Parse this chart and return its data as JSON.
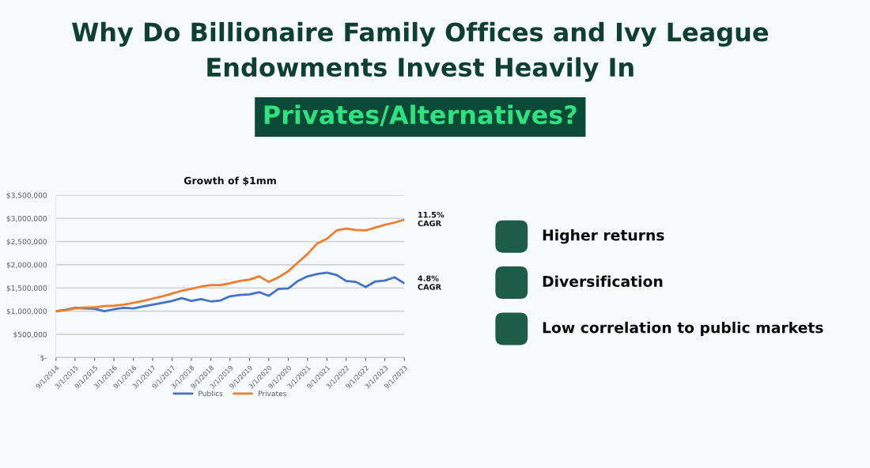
{
  "chart_data": [
    {
      "type": "other",
      "title": "Why Do Billionaire Family Offices and Ivy League\nEndowments Invest Heavily In",
      "subtitle": "Privates/Alternatives?"
    },
    {
      "type": "line",
      "title": "Growth of $1mm",
      "x": [
        "2014-09-01",
        "2014-12-01",
        "2015-03-01",
        "2015-06-01",
        "2015-09-01",
        "2015-12-01",
        "2016-03-01",
        "2016-06-01",
        "2016-09-01",
        "2016-12-01",
        "2017-03-01",
        "2017-06-01",
        "2017-09-01",
        "2017-12-01",
        "2018-03-01",
        "2018-06-01",
        "2018-09-01",
        "2018-12-01",
        "2019-03-01",
        "2019-06-01",
        "2019-09-01",
        "2019-12-01",
        "2020-03-01",
        "2020-06-01",
        "2020-09-01",
        "2020-12-01",
        "2021-03-01",
        "2021-06-01",
        "2021-09-01",
        "2021-12-01",
        "2022-03-01",
        "2022-06-01",
        "2022-09-01",
        "2022-12-01",
        "2023-03-01",
        "2023-06-01",
        "2023-09-01"
      ],
      "series": [
        {
          "name": "Publics",
          "color": "#4472c4",
          "values": [
            1000000,
            1030000,
            1070000,
            1060000,
            1050000,
            1000000,
            1040000,
            1070000,
            1060000,
            1100000,
            1140000,
            1180000,
            1220000,
            1280000,
            1220000,
            1260000,
            1210000,
            1230000,
            1320000,
            1350000,
            1360000,
            1410000,
            1330000,
            1480000,
            1490000,
            1650000,
            1750000,
            1800000,
            1830000,
            1780000,
            1650000,
            1630000,
            1520000,
            1640000,
            1660000,
            1730000,
            1600000
          ]
        },
        {
          "name": "Privates",
          "color": "#ed7d31",
          "values": [
            1000000,
            1020000,
            1060000,
            1080000,
            1080000,
            1110000,
            1120000,
            1140000,
            1180000,
            1220000,
            1270000,
            1320000,
            1380000,
            1440000,
            1480000,
            1530000,
            1560000,
            1560000,
            1600000,
            1650000,
            1680000,
            1750000,
            1630000,
            1730000,
            1860000,
            2050000,
            2230000,
            2460000,
            2560000,
            2740000,
            2780000,
            2750000,
            2740000,
            2800000,
            2860000,
            2910000,
            2970000
          ]
        }
      ],
      "xlim": [
        "2014-09-01",
        "2023-09-01"
      ],
      "xticks": [
        {
          "value": "2014-09-01",
          "label": "9/1/2014"
        },
        {
          "value": "2015-03-01",
          "label": "3/1/2015"
        },
        {
          "value": "2015-09-01",
          "label": "9/1/2015"
        },
        {
          "value": "2016-03-01",
          "label": "3/1/2016"
        },
        {
          "value": "2016-09-01",
          "label": "9/1/2016"
        },
        {
          "value": "2017-03-01",
          "label": "3/1/2017"
        },
        {
          "value": "2017-09-01",
          "label": "9/1/2017"
        },
        {
          "value": "2018-03-01",
          "label": "3/1/2018"
        },
        {
          "value": "2018-09-01",
          "label": "9/1/2018"
        },
        {
          "value": "2019-03-01",
          "label": "3/1/2019"
        },
        {
          "value": "2019-09-01",
          "label": "9/1/2019"
        },
        {
          "value": "2020-03-01",
          "label": "3/1/2020"
        },
        {
          "value": "2020-09-01",
          "label": "9/1/2020"
        },
        {
          "value": "2021-03-01",
          "label": "3/1/2021"
        },
        {
          "value": "2021-09-01",
          "label": "9/1/2021"
        },
        {
          "value": "2022-03-01",
          "label": "3/1/2022"
        },
        {
          "value": "2022-09-01",
          "label": "9/1/2022"
        },
        {
          "value": "2023-03-01",
          "label": "3/1/2023"
        },
        {
          "value": "2023-09-01",
          "label": "9/1/2023"
        }
      ],
      "ylim": [
        0,
        3500000
      ],
      "yticks": [
        {
          "value": 0,
          "label": "$-"
        },
        {
          "value": 500000,
          "label": "$500,000"
        },
        {
          "value": 1000000,
          "label": "$1,000,000"
        },
        {
          "value": 1500000,
          "label": "$1,500,000"
        },
        {
          "value": 2000000,
          "label": "$2,000,000"
        },
        {
          "value": 2500000,
          "label": "$2,500,000"
        },
        {
          "value": 3000000,
          "label": "$3,000,000"
        },
        {
          "value": 3500000,
          "label": "$3,500,000"
        }
      ],
      "grid": "y",
      "legend": "bottom",
      "annotations": [
        {
          "text": "11.5%\nCAGR",
          "x": "2023-09-01",
          "y": 2970000
        },
        {
          "text": "4.8%\nCAGR",
          "x": "2023-09-01",
          "y": 1600000
        }
      ]
    },
    {
      "type": "other",
      "annotations": [
        "Higher returns",
        "Diversification",
        "Low correlation to public markets"
      ]
    }
  ]
}
